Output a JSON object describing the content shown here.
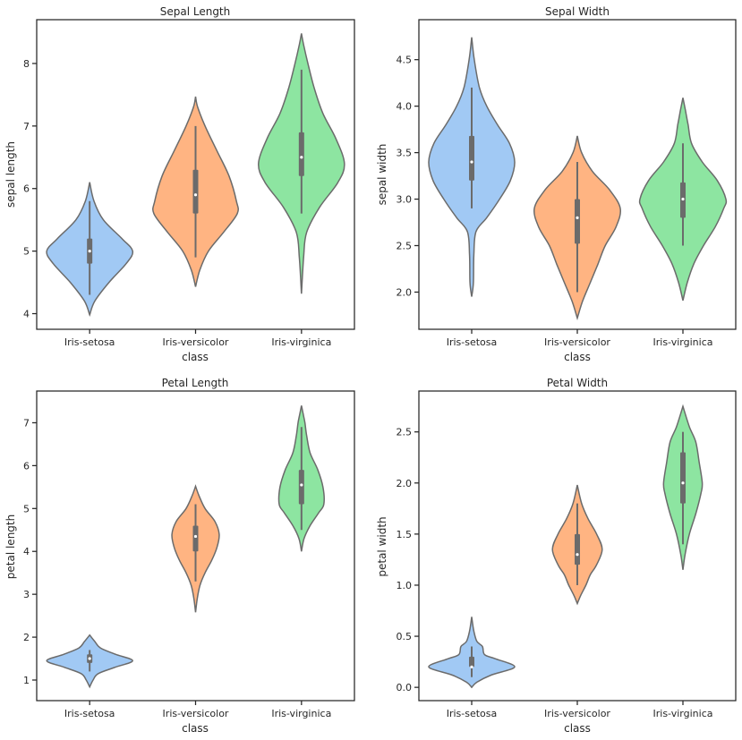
{
  "chart_data": [
    {
      "type": "violin",
      "title": "Sepal Length",
      "xlabel": "class",
      "ylabel": "sepal length",
      "categories": [
        "Iris-setosa",
        "Iris-versicolor",
        "Iris-virginica"
      ],
      "yticks": [
        4,
        5,
        6,
        7,
        8
      ],
      "ytick_labels": [
        "4",
        "5",
        "6",
        "7",
        "8"
      ],
      "ylim": [
        3.75,
        8.7
      ],
      "grid": false,
      "violins": [
        {
          "category": "Iris-setosa",
          "color": "#a1c9f4",
          "min": 4.3,
          "q1": 4.8,
          "median": 5.0,
          "q3": 5.2,
          "max": 5.8,
          "density": [
            [
              3.98,
              0
            ],
            [
              4.2,
              0.12
            ],
            [
              4.5,
              0.45
            ],
            [
              4.8,
              0.85
            ],
            [
              5.0,
              1.0
            ],
            [
              5.2,
              0.75
            ],
            [
              5.5,
              0.32
            ],
            [
              5.8,
              0.1
            ],
            [
              6.1,
              0
            ]
          ]
        },
        {
          "category": "Iris-versicolor",
          "color": "#ffb482",
          "min": 4.9,
          "q1": 5.6,
          "median": 5.9,
          "q3": 6.3,
          "max": 7.0,
          "density": [
            [
              4.43,
              0
            ],
            [
              4.7,
              0.1
            ],
            [
              5.0,
              0.3
            ],
            [
              5.3,
              0.65
            ],
            [
              5.6,
              0.97
            ],
            [
              5.8,
              0.95
            ],
            [
              6.2,
              0.78
            ],
            [
              6.6,
              0.5
            ],
            [
              7.0,
              0.22
            ],
            [
              7.3,
              0.05
            ],
            [
              7.47,
              0
            ]
          ]
        },
        {
          "category": "Iris-virginica",
          "color": "#8de5a1",
          "min": 5.6,
          "q1": 6.2,
          "median": 6.5,
          "q3": 6.9,
          "max": 7.9,
          "density": [
            [
              4.32,
              0
            ],
            [
              4.9,
              0.05
            ],
            [
              5.3,
              0.12
            ],
            [
              5.7,
              0.42
            ],
            [
              6.1,
              0.85
            ],
            [
              6.4,
              1.0
            ],
            [
              6.8,
              0.8
            ],
            [
              7.2,
              0.5
            ],
            [
              7.6,
              0.3
            ],
            [
              8.0,
              0.15
            ],
            [
              8.3,
              0.05
            ],
            [
              8.48,
              0
            ]
          ]
        }
      ]
    },
    {
      "type": "violin",
      "title": "Sepal Width",
      "xlabel": "class",
      "ylabel": "sepal width",
      "categories": [
        "Iris-setosa",
        "Iris-versicolor",
        "Iris-virginica"
      ],
      "yticks": [
        2.0,
        2.5,
        3.0,
        3.5,
        4.0,
        4.5
      ],
      "ytick_labels": [
        "2.0",
        "2.5",
        "3.0",
        "3.5",
        "4.0",
        "4.5"
      ],
      "ylim": [
        1.6,
        4.93
      ],
      "grid": false,
      "violins": [
        {
          "category": "Iris-setosa",
          "color": "#a1c9f4",
          "min": 2.9,
          "q1": 3.2,
          "median": 3.4,
          "q3": 3.68,
          "max": 4.2,
          "density": [
            [
              1.95,
              0
            ],
            [
              2.1,
              0.04
            ],
            [
              2.4,
              0.05
            ],
            [
              2.65,
              0.1
            ],
            [
              2.8,
              0.35
            ],
            [
              3.0,
              0.65
            ],
            [
              3.2,
              0.9
            ],
            [
              3.4,
              1.0
            ],
            [
              3.6,
              0.88
            ],
            [
              3.8,
              0.6
            ],
            [
              4.0,
              0.35
            ],
            [
              4.2,
              0.18
            ],
            [
              4.5,
              0.06
            ],
            [
              4.74,
              0
            ]
          ]
        },
        {
          "category": "Iris-versicolor",
          "color": "#ffb482",
          "min": 2.0,
          "q1": 2.52,
          "median": 2.8,
          "q3": 3.0,
          "max": 3.4,
          "density": [
            [
              1.72,
              0
            ],
            [
              1.9,
              0.12
            ],
            [
              2.1,
              0.3
            ],
            [
              2.3,
              0.48
            ],
            [
              2.5,
              0.65
            ],
            [
              2.7,
              0.9
            ],
            [
              2.9,
              1.0
            ],
            [
              3.1,
              0.75
            ],
            [
              3.3,
              0.35
            ],
            [
              3.5,
              0.1
            ],
            [
              3.68,
              0
            ]
          ]
        },
        {
          "category": "Iris-virginica",
          "color": "#8de5a1",
          "min": 2.5,
          "q1": 2.8,
          "median": 3.0,
          "q3": 3.18,
          "max": 3.6,
          "density": [
            [
              1.91,
              0
            ],
            [
              2.1,
              0.1
            ],
            [
              2.3,
              0.25
            ],
            [
              2.5,
              0.48
            ],
            [
              2.7,
              0.75
            ],
            [
              2.9,
              0.95
            ],
            [
              3.0,
              1.0
            ],
            [
              3.2,
              0.8
            ],
            [
              3.4,
              0.45
            ],
            [
              3.6,
              0.2
            ],
            [
              3.8,
              0.12
            ],
            [
              3.95,
              0.06
            ],
            [
              4.09,
              0
            ]
          ]
        }
      ]
    },
    {
      "type": "violin",
      "title": "Petal Length",
      "xlabel": "class",
      "ylabel": "petal length",
      "categories": [
        "Iris-setosa",
        "Iris-versicolor",
        "Iris-virginica"
      ],
      "yticks": [
        1,
        2,
        3,
        4,
        5,
        6,
        7
      ],
      "ytick_labels": [
        "1",
        "2",
        "3",
        "4",
        "5",
        "6",
        "7"
      ],
      "ylim": [
        0.52,
        7.74
      ],
      "grid": false,
      "violins": [
        {
          "category": "Iris-setosa",
          "color": "#a1c9f4",
          "min": 1.2,
          "q1": 1.4,
          "median": 1.5,
          "q3": 1.6,
          "max": 1.7,
          "density": [
            [
              0.84,
              0
            ],
            [
              1.0,
              0.08
            ],
            [
              1.15,
              0.2
            ],
            [
              1.3,
              0.6
            ],
            [
              1.45,
              1.0
            ],
            [
              1.6,
              0.6
            ],
            [
              1.75,
              0.25
            ],
            [
              1.9,
              0.12
            ],
            [
              2.05,
              0
            ]
          ]
        },
        {
          "category": "Iris-versicolor",
          "color": "#ffb482",
          "min": 3.3,
          "q1": 4.0,
          "median": 4.35,
          "q3": 4.6,
          "max": 5.1,
          "density": [
            [
              2.58,
              0
            ],
            [
              2.9,
              0.04
            ],
            [
              3.2,
              0.1
            ],
            [
              3.5,
              0.22
            ],
            [
              3.8,
              0.38
            ],
            [
              4.1,
              0.5
            ],
            [
              4.4,
              0.55
            ],
            [
              4.7,
              0.45
            ],
            [
              5.0,
              0.22
            ],
            [
              5.3,
              0.08
            ],
            [
              5.52,
              0
            ]
          ]
        },
        {
          "category": "Iris-virginica",
          "color": "#8de5a1",
          "min": 4.5,
          "q1": 5.1,
          "median": 5.55,
          "q3": 5.9,
          "max": 6.9,
          "density": [
            [
              4.0,
              0
            ],
            [
              4.3,
              0.06
            ],
            [
              4.6,
              0.2
            ],
            [
              4.9,
              0.4
            ],
            [
              5.1,
              0.52
            ],
            [
              5.5,
              0.5
            ],
            [
              5.9,
              0.38
            ],
            [
              6.3,
              0.2
            ],
            [
              6.7,
              0.12
            ],
            [
              7.0,
              0.08
            ],
            [
              7.2,
              0.04
            ],
            [
              7.4,
              0
            ]
          ]
        }
      ]
    },
    {
      "type": "violin",
      "title": "Petal Width",
      "xlabel": "class",
      "ylabel": "petal width",
      "categories": [
        "Iris-setosa",
        "Iris-versicolor",
        "Iris-virginica"
      ],
      "yticks": [
        0.0,
        0.5,
        1.0,
        1.5,
        2.0,
        2.5
      ],
      "ytick_labels": [
        "0.0",
        "0.5",
        "1.0",
        "1.5",
        "2.0",
        "2.5"
      ],
      "ylim": [
        -0.13,
        2.9
      ],
      "grid": false,
      "violins": [
        {
          "category": "Iris-setosa",
          "color": "#a1c9f4",
          "min": 0.1,
          "q1": 0.2,
          "median": 0.2,
          "q3": 0.3,
          "max": 0.4,
          "density": [
            [
              0.0,
              0
            ],
            [
              0.05,
              0.12
            ],
            [
              0.12,
              0.45
            ],
            [
              0.2,
              1.0
            ],
            [
              0.28,
              0.55
            ],
            [
              0.32,
              0.3
            ],
            [
              0.4,
              0.25
            ],
            [
              0.45,
              0.12
            ],
            [
              0.55,
              0.05
            ],
            [
              0.69,
              0
            ]
          ]
        },
        {
          "category": "Iris-versicolor",
          "color": "#ffb482",
          "min": 1.0,
          "q1": 1.2,
          "median": 1.3,
          "q3": 1.5,
          "max": 1.8,
          "density": [
            [
              0.82,
              0
            ],
            [
              0.9,
              0.08
            ],
            [
              1.0,
              0.2
            ],
            [
              1.1,
              0.3
            ],
            [
              1.2,
              0.45
            ],
            [
              1.35,
              0.58
            ],
            [
              1.5,
              0.45
            ],
            [
              1.65,
              0.25
            ],
            [
              1.8,
              0.1
            ],
            [
              1.98,
              0
            ]
          ]
        },
        {
          "category": "Iris-virginica",
          "color": "#8de5a1",
          "min": 1.4,
          "q1": 1.8,
          "median": 2.0,
          "q3": 2.3,
          "max": 2.5,
          "density": [
            [
              1.15,
              0
            ],
            [
              1.3,
              0.05
            ],
            [
              1.5,
              0.15
            ],
            [
              1.7,
              0.3
            ],
            [
              1.9,
              0.42
            ],
            [
              2.0,
              0.45
            ],
            [
              2.2,
              0.38
            ],
            [
              2.4,
              0.3
            ],
            [
              2.55,
              0.15
            ],
            [
              2.75,
              0
            ]
          ]
        }
      ]
    }
  ]
}
